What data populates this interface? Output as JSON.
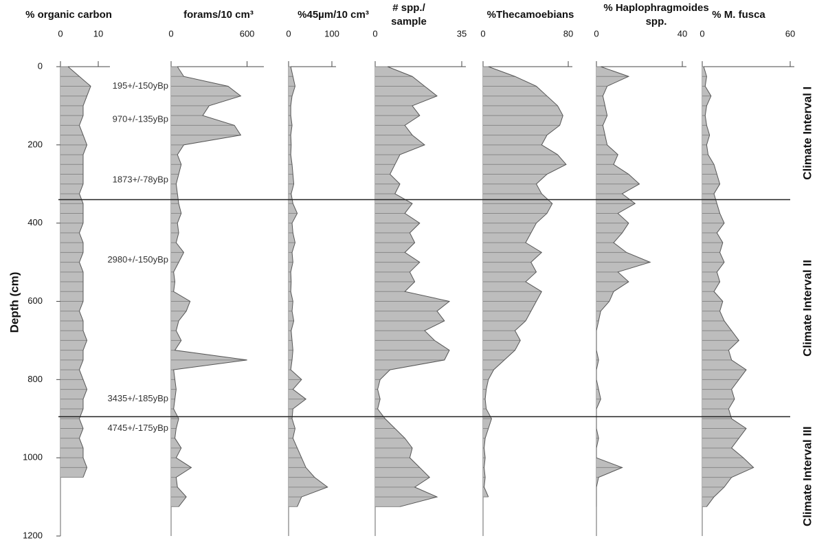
{
  "chart_data": {
    "type": "stratigraphic",
    "ylabel": "Depth (cm)",
    "ylim": [
      0,
      1200
    ],
    "yticks": [
      0,
      200,
      400,
      600,
      800,
      1000,
      1200
    ],
    "y_inverted": true,
    "y": [
      0,
      25,
      50,
      75,
      100,
      125,
      150,
      175,
      200,
      225,
      250,
      275,
      300,
      325,
      350,
      375,
      400,
      425,
      450,
      475,
      500,
      525,
      550,
      575,
      600,
      625,
      650,
      675,
      700,
      725,
      750,
      775,
      800,
      825,
      850,
      875,
      900,
      925,
      950,
      975,
      1000,
      1025,
      1050,
      1075,
      1100,
      1125
    ],
    "color": "#bdbdbd",
    "line_color": "#555555",
    "panels": [
      {
        "title": [
          "% organic carbon"
        ],
        "xlim": [
          0,
          12
        ],
        "xticks": [
          0,
          10
        ],
        "values": [
          2,
          5,
          8,
          7,
          6,
          6,
          5,
          6,
          7,
          6,
          6,
          6,
          6,
          5,
          6,
          6,
          6,
          5,
          6,
          6,
          5,
          6,
          6,
          6,
          6,
          5,
          6,
          6,
          7,
          6,
          6,
          5,
          6,
          7,
          6,
          6,
          5,
          6,
          5,
          6,
          6,
          7,
          6,
          null,
          null,
          null
        ]
      },
      {
        "title": [
          "forams/10 cm³"
        ],
        "xlim": [
          0,
          700
        ],
        "xticks": [
          0,
          600
        ],
        "values": [
          50,
          100,
          450,
          550,
          300,
          250,
          500,
          550,
          100,
          50,
          80,
          60,
          40,
          50,
          60,
          80,
          50,
          60,
          40,
          100,
          60,
          20,
          30,
          20,
          150,
          120,
          60,
          40,
          80,
          30,
          600,
          20,
          30,
          40,
          30,
          20,
          60,
          40,
          30,
          80,
          40,
          160,
          40,
          50,
          120,
          60
        ]
      },
      {
        "title": [
          "%45µm/10 cm³"
        ],
        "xlim": [
          0,
          100
        ],
        "xticks": [
          0,
          100
        ],
        "values": [
          5,
          10,
          15,
          8,
          5,
          5,
          8,
          5,
          6,
          5,
          8,
          10,
          12,
          6,
          10,
          20,
          8,
          10,
          15,
          8,
          10,
          5,
          6,
          5,
          10,
          8,
          12,
          6,
          8,
          10,
          8,
          5,
          30,
          10,
          40,
          10,
          8,
          15,
          10,
          20,
          30,
          40,
          60,
          90,
          30,
          20
        ]
      },
      {
        "title": [
          "# spp./",
          "sample"
        ],
        "xlim": [
          0,
          35
        ],
        "xticks": [
          0,
          35
        ],
        "values": [
          5,
          15,
          20,
          25,
          15,
          18,
          12,
          15,
          20,
          10,
          8,
          6,
          10,
          8,
          15,
          12,
          18,
          14,
          16,
          12,
          18,
          14,
          16,
          12,
          30,
          25,
          28,
          20,
          24,
          30,
          28,
          6,
          2,
          1,
          2,
          1,
          4,
          8,
          12,
          15,
          14,
          18,
          22,
          16,
          25,
          10
        ]
      },
      {
        "title": [
          "%Thecamoebians"
        ],
        "xlim": [
          0,
          80
        ],
        "xticks": [
          0,
          80
        ],
        "values": [
          5,
          30,
          50,
          60,
          70,
          75,
          72,
          60,
          55,
          70,
          78,
          60,
          50,
          55,
          65,
          60,
          50,
          45,
          40,
          55,
          45,
          50,
          40,
          55,
          50,
          45,
          40,
          30,
          35,
          30,
          20,
          10,
          5,
          3,
          2,
          3,
          8,
          5,
          2,
          1,
          2,
          1,
          2,
          1,
          5,
          null
        ]
      },
      {
        "title": [
          "% Haplophragmoides",
          "spp."
        ],
        "xlim": [
          0,
          40
        ],
        "xticks": [
          0,
          40
        ],
        "values": [
          2,
          15,
          5,
          3,
          4,
          5,
          3,
          4,
          5,
          10,
          8,
          15,
          20,
          12,
          18,
          10,
          15,
          12,
          8,
          14,
          25,
          10,
          15,
          8,
          6,
          2,
          1,
          0,
          0,
          0,
          1,
          0,
          0,
          1,
          2,
          0,
          0,
          0,
          1,
          0,
          0,
          12,
          1,
          0,
          0,
          0
        ]
      },
      {
        "title": [
          "% M. fusca"
        ],
        "xlim": [
          0,
          60
        ],
        "xticks": [
          0,
          60
        ],
        "values": [
          1,
          3,
          2,
          6,
          3,
          2,
          3,
          5,
          3,
          4,
          8,
          10,
          12,
          8,
          10,
          12,
          15,
          10,
          14,
          12,
          15,
          10,
          12,
          8,
          14,
          12,
          15,
          20,
          25,
          18,
          20,
          30,
          25,
          20,
          22,
          18,
          20,
          30,
          25,
          20,
          28,
          35,
          20,
          15,
          8,
          3
        ]
      }
    ],
    "annotations": [
      {
        "text": "195+/-150yBp",
        "y": 50
      },
      {
        "text": "970+/-135yBp",
        "y": 135
      },
      {
        "text": "1873+/-78yBp",
        "y": 290
      },
      {
        "text": "2980+/-150yBp",
        "y": 495
      },
      {
        "text": "3435+/-185yBp",
        "y": 850
      },
      {
        "text": "4745+/-175yBp",
        "y": 925
      }
    ],
    "boundaries": [
      340,
      895
    ],
    "intervals": [
      "Climate Interval I",
      "Climate Interval II",
      "Climate Interval III"
    ]
  }
}
